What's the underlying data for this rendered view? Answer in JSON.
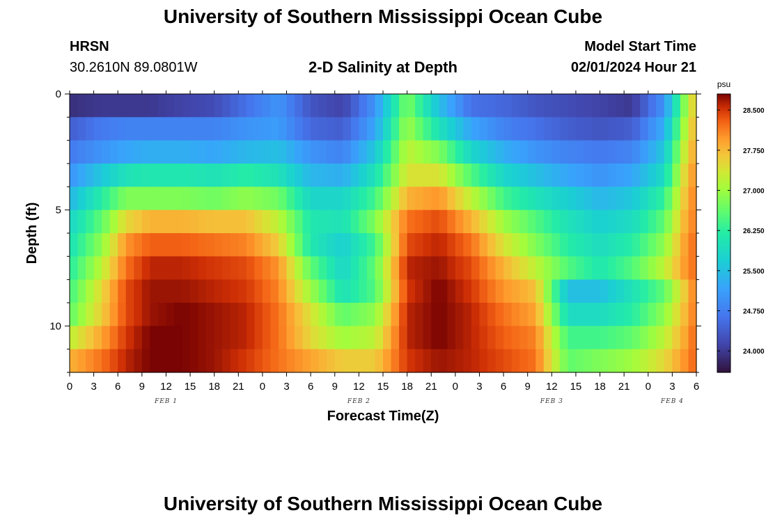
{
  "page": {
    "title_top": "University of Southern Mississippi Ocean Cube",
    "title_bottom": "University of Southern Mississippi Ocean Cube",
    "station": "HRSN",
    "coords": "30.2610N  89.0801W",
    "plot_title": "2-D Salinity at Depth",
    "model_label": "Model Start Time",
    "model_time": "02/01/2024 Hour 21"
  },
  "chart_data": {
    "type": "heatmap",
    "title": "2-D Salinity at Depth",
    "xlabel": "Forecast Time(Z)",
    "ylabel": "Depth (ft)",
    "colorbar_unit": "psu",
    "x_hours_range": [
      0,
      78
    ],
    "x_tick_labels": [
      "0",
      "3",
      "6",
      "9",
      "12",
      "15",
      "18",
      "21",
      "0",
      "3",
      "6",
      "9",
      "12",
      "15",
      "18",
      "21",
      "0",
      "3",
      "6",
      "9",
      "12",
      "15",
      "18",
      "21",
      "0",
      "3",
      "6"
    ],
    "day_labels": [
      {
        "text": "FEB 1",
        "hour": 12
      },
      {
        "text": "FEB 2",
        "hour": 36
      },
      {
        "text": "FEB 3",
        "hour": 60
      },
      {
        "text": "FEB 4",
        "hour": 75
      }
    ],
    "y_range_ft": [
      0,
      12
    ],
    "y_tick_labels": [
      {
        "value": 0,
        "label": "0"
      },
      {
        "value": 5,
        "label": "5"
      },
      {
        "value": 10,
        "label": "10"
      }
    ],
    "color_range": [
      23.6,
      28.8
    ],
    "colorbar_ticks": [
      "24.000",
      "24.750",
      "25.500",
      "26.250",
      "27.000",
      "27.750",
      "28.500"
    ],
    "colorbar_tick_values": [
      24.0,
      24.75,
      25.5,
      26.25,
      27.0,
      27.75,
      28.5
    ],
    "depth_layers": 12,
    "time_keys_hours": [
      0,
      4,
      7,
      10,
      14,
      18,
      22,
      26,
      30,
      34,
      38,
      42,
      46,
      50,
      54,
      58,
      62,
      66,
      70,
      74,
      77,
      78
    ],
    "salinity_profiles": [
      [
        23.9,
        24.0,
        24.0,
        24.0,
        24.1,
        24.2,
        24.6,
        25.0,
        24.3,
        24.1,
        25.0,
        26.8,
        25.5,
        24.6,
        24.5,
        24.3,
        24.2,
        24.1,
        24.0,
        25.0,
        27.2,
        27.7
      ],
      [
        24.4,
        24.7,
        24.8,
        24.8,
        24.8,
        24.8,
        25.0,
        25.1,
        24.5,
        24.4,
        25.2,
        27.0,
        26.0,
        25.2,
        24.8,
        24.6,
        24.4,
        24.3,
        24.4,
        25.3,
        27.4,
        27.8
      ],
      [
        24.7,
        25.0,
        25.2,
        25.3,
        25.3,
        25.2,
        25.4,
        25.5,
        25.0,
        24.8,
        25.6,
        27.2,
        26.8,
        25.8,
        25.3,
        25.0,
        24.8,
        24.7,
        24.8,
        25.6,
        27.6,
        27.9
      ],
      [
        25.0,
        25.6,
        26.0,
        26.1,
        26.1,
        26.0,
        26.2,
        26.0,
        25.4,
        25.3,
        26.0,
        27.4,
        27.4,
        26.5,
        25.8,
        25.5,
        25.2,
        25.0,
        25.2,
        25.9,
        27.8,
        28.0
      ],
      [
        25.4,
        26.2,
        26.8,
        26.8,
        26.8,
        26.7,
        26.9,
        26.7,
        25.8,
        25.8,
        26.4,
        27.8,
        28.0,
        27.2,
        26.4,
        26.0,
        25.7,
        25.4,
        25.6,
        26.3,
        27.9,
        28.1
      ],
      [
        25.8,
        26.6,
        27.5,
        27.8,
        27.8,
        27.7,
        27.7,
        27.2,
        26.1,
        26.0,
        26.8,
        28.2,
        28.4,
        27.8,
        27.0,
        26.5,
        26.0,
        25.7,
        25.9,
        26.6,
        28.0,
        28.1
      ],
      [
        26.0,
        26.9,
        28.0,
        28.3,
        28.3,
        28.2,
        28.1,
        27.6,
        26.1,
        25.7,
        26.4,
        28.4,
        28.6,
        28.2,
        27.4,
        26.8,
        26.2,
        25.9,
        26.2,
        26.9,
        28.1,
        28.2
      ],
      [
        26.2,
        27.2,
        28.2,
        28.6,
        28.6,
        28.5,
        28.4,
        28.0,
        26.6,
        25.8,
        26.6,
        28.6,
        28.7,
        28.4,
        27.8,
        27.2,
        26.5,
        26.1,
        26.5,
        27.2,
        28.1,
        28.2
      ],
      [
        26.4,
        27.5,
        28.4,
        28.7,
        28.7,
        28.6,
        28.5,
        28.1,
        27.0,
        26.0,
        26.5,
        28.5,
        28.8,
        28.5,
        28.0,
        27.7,
        25.5,
        25.5,
        26.0,
        26.6,
        27.8,
        28.2
      ],
      [
        26.6,
        27.6,
        28.4,
        28.7,
        28.8,
        28.7,
        28.6,
        28.2,
        27.4,
        26.6,
        26.9,
        28.6,
        28.8,
        28.6,
        28.2,
        27.9,
        25.9,
        25.9,
        26.2,
        26.9,
        27.9,
        28.2
      ],
      [
        27.2,
        27.9,
        28.5,
        28.8,
        28.8,
        28.7,
        28.6,
        28.2,
        27.5,
        27.0,
        27.2,
        28.6,
        28.8,
        28.6,
        28.3,
        28.1,
        26.4,
        26.4,
        26.6,
        27.2,
        28.0,
        28.3
      ],
      [
        27.8,
        28.2,
        28.6,
        28.8,
        28.8,
        28.7,
        28.5,
        28.2,
        27.9,
        27.6,
        27.6,
        28.5,
        28.7,
        28.6,
        28.4,
        28.2,
        26.6,
        26.8,
        27.0,
        27.5,
        28.1,
        28.3
      ]
    ]
  }
}
